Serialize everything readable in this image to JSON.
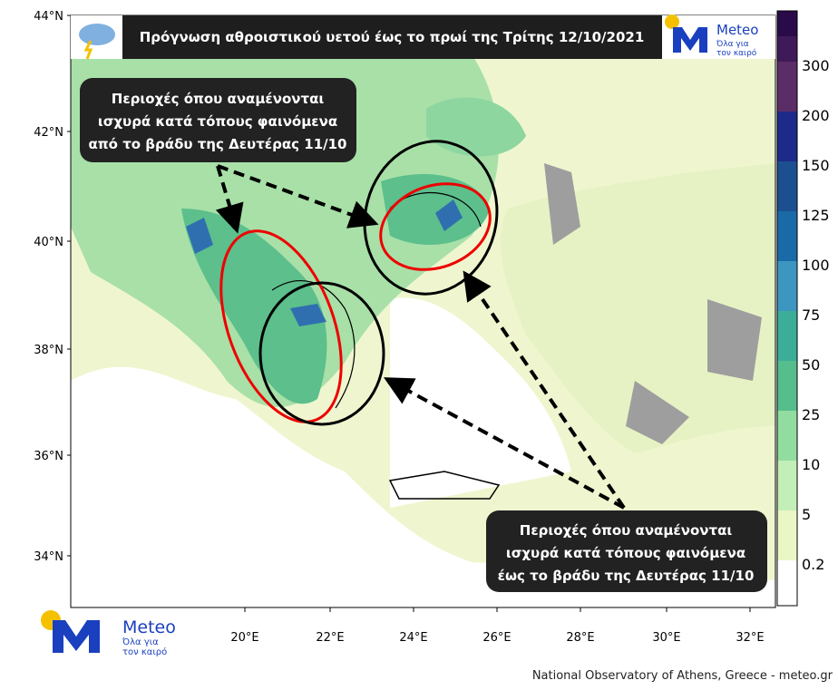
{
  "header": {
    "title": "Πρόγνωση αθροιστικού υετού έως το πρωί της Τρίτης 12/10/2021"
  },
  "logo": {
    "name": "Meteo",
    "tagline_1": "Όλα για",
    "tagline_2": "τον καιρό"
  },
  "callouts": [
    {
      "lines": [
        "Περιοχές όπου αναμένονται",
        "ισχυρά κατά τόπους φαινόμενα",
        "από το βράδυ της Δευτέρας 11/10"
      ]
    },
    {
      "lines": [
        "Περιοχές όπου αναμένονται",
        "ισχυρά κατά τόπους φαινόμενα",
        "έως το βράδυ της Δευτέρας 11/10"
      ]
    }
  ],
  "latitude_labels": [
    "44°N",
    "42°N",
    "40°N",
    "38°N",
    "36°N",
    "34°N"
  ],
  "longitude_labels": [
    "20°E",
    "22°E",
    "24°E",
    "26°E",
    "28°E",
    "30°E",
    "32°E"
  ],
  "colorbar": {
    "labels": [
      300,
      200,
      150,
      125,
      100,
      75,
      50,
      25,
      10,
      5,
      0.2
    ]
  },
  "footer": "National Observatory of Athens, Greece - meteo.gr"
}
